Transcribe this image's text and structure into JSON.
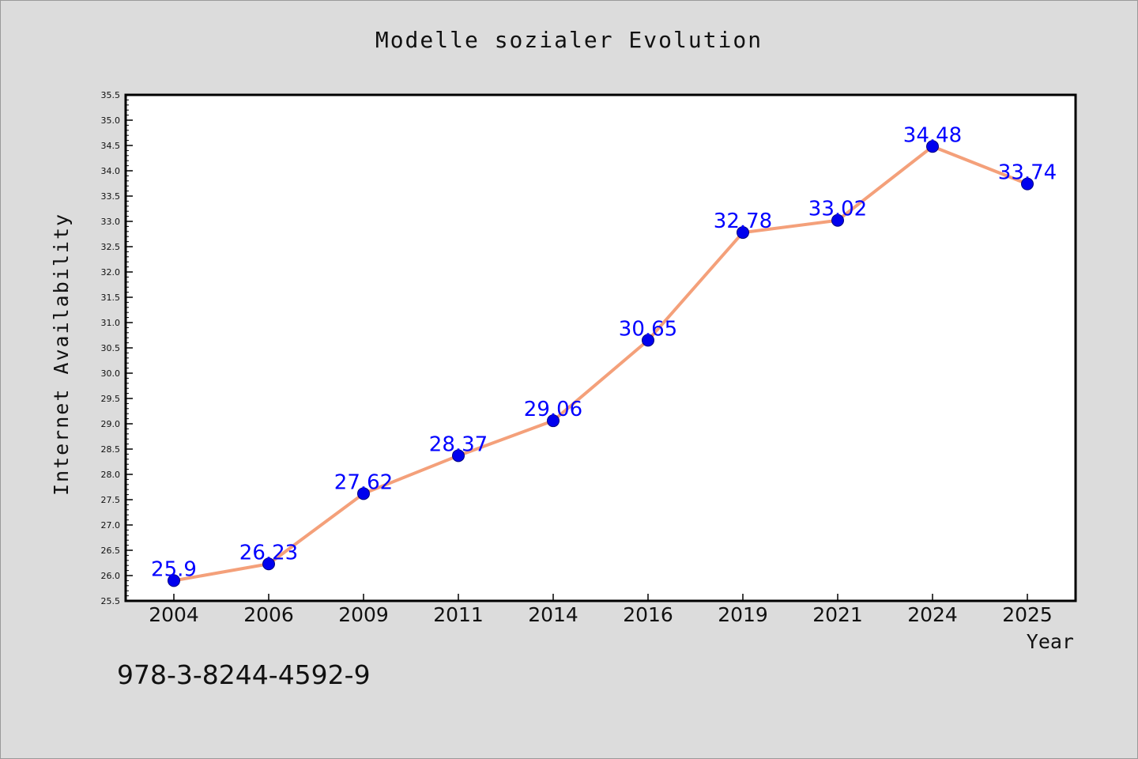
{
  "chart_data": {
    "type": "line",
    "title": "Modelle sozialer Evolution",
    "xlabel": "Year",
    "ylabel": "Internet Availability",
    "categories": [
      "2004",
      "2006",
      "2009",
      "2011",
      "2014",
      "2016",
      "2019",
      "2021",
      "2024",
      "2025"
    ],
    "series": [
      {
        "values": [
          25.9,
          26.23,
          27.62,
          28.37,
          29.06,
          30.65,
          32.78,
          33.02,
          34.48,
          33.74
        ],
        "labels": [
          "25.9",
          "26.23",
          "27.62",
          "28.37",
          "29.06",
          "30.65",
          "32.78",
          "33.02",
          "34.48",
          "33.74"
        ]
      }
    ],
    "ylim": [
      25.5,
      35.5
    ],
    "yticks": [
      "25.5",
      "26.0",
      "26.5",
      "27.0",
      "27.5",
      "28.0",
      "28.5",
      "29.0",
      "29.5",
      "30.0",
      "30.5",
      "31.0",
      "31.5",
      "32.0",
      "32.5",
      "33.0",
      "33.5",
      "34.0",
      "34.5",
      "35.0",
      "35.5"
    ],
    "grid": false,
    "colors": {
      "line": "#f4a07a",
      "marker": "#0000ee",
      "label": "#0000ff",
      "axis": "#000000"
    }
  },
  "footer": {
    "isbn": "978-3-8244-4592-9"
  }
}
